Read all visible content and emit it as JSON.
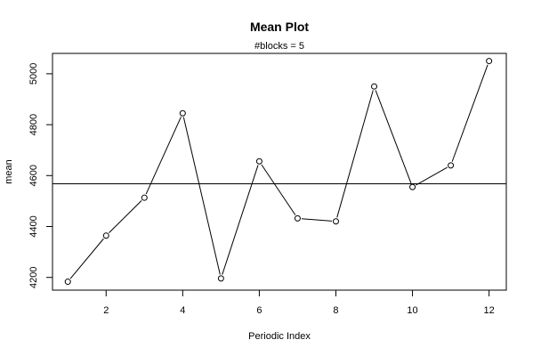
{
  "chart_data": {
    "type": "line",
    "title": "Mean Plot",
    "subtitle": "#blocks =  5",
    "xlabel": "Periodic Index",
    "ylabel": "mean",
    "x": [
      1,
      2,
      3,
      4,
      5,
      6,
      7,
      8,
      9,
      10,
      11,
      12
    ],
    "y": [
      4183,
      4364,
      4513,
      4845,
      4196,
      4656,
      4432,
      4420,
      4950,
      4555,
      4640,
      5050
    ],
    "hline": 4568,
    "xlim": [
      0.6,
      12.45
    ],
    "ylim": [
      4150,
      5080
    ],
    "xticks": [
      2,
      4,
      6,
      8,
      10,
      12
    ],
    "yticks": [
      4200,
      4400,
      4600,
      4800,
      5000
    ],
    "grid": false,
    "marker": "open-circle",
    "line_color": "#000000"
  }
}
